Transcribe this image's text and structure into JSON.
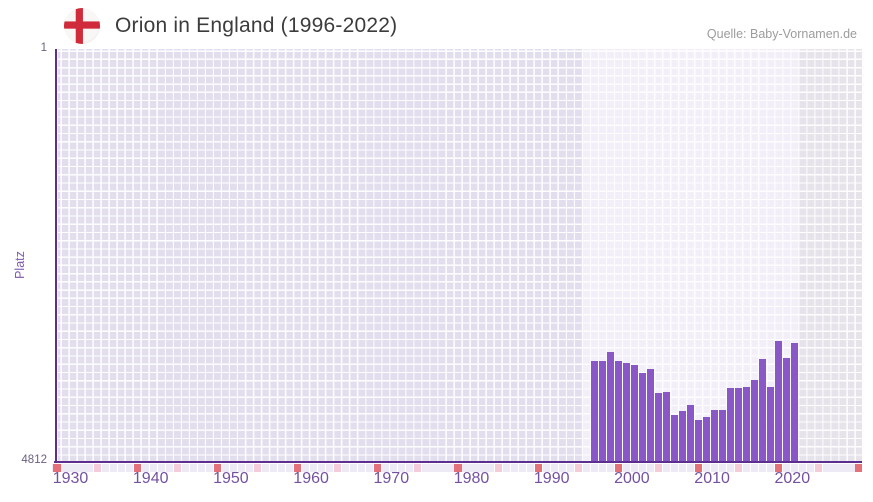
{
  "header": {
    "title": "Orion in England (1996-2022)",
    "flag_icon": "england-flag",
    "source": "Quelle: Baby-Vornamen.de"
  },
  "axes": {
    "y_top_label": "1",
    "y_bottom_label": "4812",
    "y_title": "Platz",
    "x_tick_labels": [
      "1930",
      "1940",
      "1950",
      "1960",
      "1970",
      "1980",
      "1990",
      "2000",
      "2010",
      "2020"
    ]
  },
  "colors": {
    "bar": "#8a57c6",
    "axis_line": "#5b2e90",
    "zone_before": "#e3deed",
    "zone_highlight": "#f2eff9",
    "zone_after": "#e6e3eb",
    "strip_default": "#edeaf6",
    "strip_half_decade": "#f4ccd9",
    "strip_decade": "#e4707a",
    "title_text": "#3c3c3c",
    "source_text": "#9c9c9c",
    "x_label_text": "#7452a0",
    "flag_red": "#cf2b3a",
    "flag_white": "#f6f5f3"
  },
  "chart_data": {
    "type": "bar",
    "title": "Orion in England (1996-2022)",
    "ylabel": "Platz",
    "xlabel": "",
    "y_axis_inverted": true,
    "ylim": [
      1,
      4812
    ],
    "x_axis_range": [
      1929,
      2030
    ],
    "x_ticks": [
      1930,
      1940,
      1950,
      1960,
      1970,
      1980,
      1990,
      2000,
      2010,
      2020
    ],
    "highlight_year_range": [
      1996,
      2022
    ],
    "grid": true,
    "legend_position": "none",
    "x": [
      1996,
      1997,
      1998,
      1999,
      2000,
      2001,
      2002,
      2003,
      2004,
      2005,
      2006,
      2007,
      2008,
      2009,
      2010,
      2011,
      2012,
      2013,
      2014,
      2015,
      2016,
      2017,
      2018,
      2019,
      2020,
      2021,
      2022
    ],
    "values": [
      4812,
      3640,
      3640,
      3540,
      3640,
      3665,
      3685,
      3790,
      3740,
      4015,
      4005,
      4275,
      4230,
      4160,
      4335,
      4295,
      4215,
      4215,
      3965,
      3965,
      3945,
      3865,
      3615,
      3950,
      3410,
      3605,
      3430
    ]
  }
}
